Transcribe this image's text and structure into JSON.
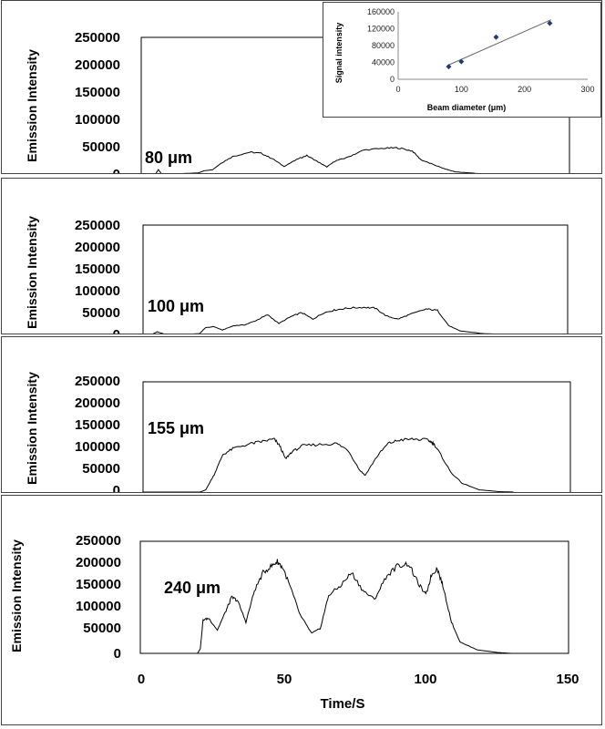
{
  "chart_data": [
    {
      "type": "line",
      "ylabel": "Emission Intensity",
      "yticks": [
        "250000",
        "200000",
        "150000",
        "100000",
        "50000",
        "0"
      ],
      "ylim": [
        0,
        250000
      ],
      "xlim": [
        0,
        150
      ],
      "annotation": "80 μm",
      "series": [
        {
          "x": [
            0,
            5,
            6,
            7,
            10,
            15,
            20,
            22,
            25,
            28,
            32,
            38,
            42,
            46,
            50,
            55,
            58,
            62,
            65,
            68,
            72,
            78,
            85,
            90,
            95,
            98,
            102,
            106,
            110,
            118,
            125,
            130
          ],
          "y": [
            0,
            0,
            8000,
            1000,
            0,
            1000,
            2000,
            6000,
            8000,
            20000,
            32000,
            40000,
            38000,
            28000,
            14000,
            28000,
            34000,
            22000,
            13000,
            24000,
            30000,
            44000,
            47000,
            48000,
            42000,
            26000,
            18000,
            10000,
            4000,
            1000,
            0,
            0
          ]
        }
      ]
    },
    {
      "type": "line",
      "ylabel": "Emission Intensity",
      "yticks": [
        "250000",
        "200000",
        "150000",
        "100000",
        "50000",
        "0"
      ],
      "ylim": [
        0,
        250000
      ],
      "xlim": [
        0,
        150
      ],
      "annotation": "100 μm",
      "series": [
        {
          "x": [
            0,
            3,
            5,
            8,
            15,
            20,
            22,
            25,
            28,
            32,
            36,
            40,
            44,
            48,
            52,
            56,
            60,
            64,
            68,
            72,
            78,
            82,
            86,
            90,
            94,
            100,
            104,
            108,
            112,
            120,
            128,
            130
          ],
          "y": [
            0,
            0,
            6000,
            0,
            0,
            2000,
            15000,
            18000,
            10000,
            20000,
            22000,
            32000,
            45000,
            25000,
            40000,
            50000,
            35000,
            50000,
            56000,
            60000,
            62000,
            60000,
            42000,
            35000,
            45000,
            58000,
            55000,
            20000,
            8000,
            2000,
            0,
            0
          ]
        }
      ]
    },
    {
      "type": "line",
      "ylabel": "Emission Intensity",
      "yticks": [
        "250000",
        "200000",
        "150000",
        "100000",
        "50000",
        "0"
      ],
      "ylim": [
        0,
        250000
      ],
      "xlim": [
        0,
        150
      ],
      "annotation": "155 μm",
      "series": [
        {
          "x": [
            0,
            10,
            20,
            22,
            25,
            28,
            32,
            38,
            42,
            46,
            48,
            50,
            52,
            56,
            62,
            68,
            72,
            76,
            78,
            82,
            86,
            90,
            95,
            100,
            102,
            104,
            108,
            112,
            118,
            125,
            130
          ],
          "y": [
            0,
            0,
            0,
            5000,
            40000,
            85000,
            100000,
            110000,
            115000,
            120000,
            105000,
            75000,
            90000,
            105000,
            108000,
            110000,
            95000,
            50000,
            38000,
            80000,
            110000,
            118000,
            120000,
            118000,
            110000,
            90000,
            45000,
            20000,
            5000,
            1000,
            0
          ]
        }
      ]
    },
    {
      "type": "line",
      "ylabel": "Emission Intensity",
      "yticks": [
        "250000",
        "200000",
        "150000",
        "100000",
        "50000",
        "0"
      ],
      "ylim": [
        0,
        250000
      ],
      "xlim": [
        0,
        150
      ],
      "xticks": [
        "0",
        "50",
        "100",
        "150"
      ],
      "xlabel": "Time/S",
      "annotation": "240 μm",
      "series": [
        {
          "x": [
            0,
            10,
            20,
            21,
            22,
            24,
            27,
            30,
            32,
            34,
            37,
            40,
            43,
            46,
            48,
            50,
            53,
            56,
            60,
            63,
            66,
            70,
            74,
            78,
            82,
            86,
            90,
            94,
            97,
            100,
            102,
            104,
            106,
            109,
            112,
            118,
            125,
            130
          ],
          "y": [
            0,
            0,
            0,
            10000,
            75000,
            78000,
            52000,
            95000,
            125000,
            118000,
            70000,
            140000,
            180000,
            195000,
            205000,
            190000,
            140000,
            85000,
            45000,
            55000,
            130000,
            150000,
            180000,
            140000,
            120000,
            170000,
            195000,
            200000,
            160000,
            130000,
            175000,
            190000,
            150000,
            70000,
            25000,
            8000,
            2000,
            0
          ]
        }
      ]
    },
    {
      "type": "scatter",
      "ylabel": "Signal intensity",
      "xlabel": "Beam diameter (μm)",
      "yticks": [
        "160000",
        "120000",
        "80000",
        "40000",
        "0"
      ],
      "xticks": [
        "0",
        "100",
        "200",
        "300"
      ],
      "xlim": [
        0,
        300
      ],
      "ylim": [
        0,
        160000
      ],
      "trendline": true,
      "series": [
        {
          "x": [
            80,
            100,
            155,
            240
          ],
          "y": [
            30000,
            42000,
            100000,
            133000
          ]
        }
      ]
    }
  ]
}
